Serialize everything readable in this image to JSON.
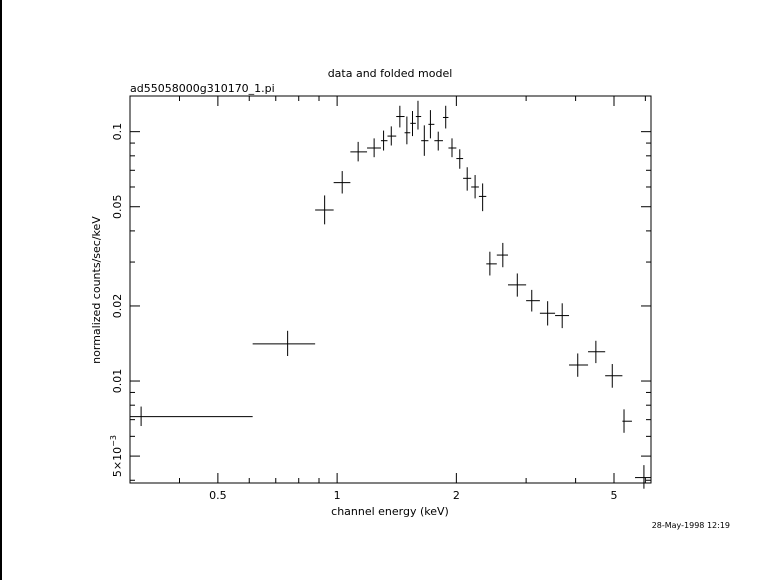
{
  "chart_data": {
    "type": "scatter",
    "title": "data and folded model",
    "subtitle": "ad55058000g310170_1.pi",
    "xlabel": "channel energy (keV)",
    "ylabel": "normalized counts/sec/keV",
    "x_scale": "log",
    "y_scale": "log",
    "xlim": [
      0.3,
      6.2
    ],
    "ylim": [
      0.0039,
      0.139
    ],
    "x_tick_labels": [
      "0.5",
      "1",
      "2",
      "5"
    ],
    "y_tick_labels": [
      "5×10",
      "0.01",
      "0.02",
      "0.05",
      "0.1"
    ],
    "y_tick_exponent": "−3",
    "grid": false,
    "legend": "none",
    "points": [
      {
        "x": 0.32,
        "y": 0.0072,
        "xlo": 0.3,
        "xhi": 0.612,
        "ylo": 0.0066,
        "yhi": 0.0079
      },
      {
        "x": 0.75,
        "y": 0.0141,
        "xlo": 0.612,
        "xhi": 0.88,
        "ylo": 0.0126,
        "yhi": 0.0159
      },
      {
        "x": 0.93,
        "y": 0.0485,
        "xlo": 0.88,
        "xhi": 0.98,
        "ylo": 0.0425,
        "yhi": 0.0555
      },
      {
        "x": 1.03,
        "y": 0.0625,
        "xlo": 0.98,
        "xhi": 1.08,
        "ylo": 0.0565,
        "yhi": 0.0695
      },
      {
        "x": 1.13,
        "y": 0.083,
        "xlo": 1.08,
        "xhi": 1.19,
        "ylo": 0.076,
        "yhi": 0.091
      },
      {
        "x": 1.24,
        "y": 0.086,
        "xlo": 1.19,
        "xhi": 1.29,
        "ylo": 0.079,
        "yhi": 0.094
      },
      {
        "x": 1.31,
        "y": 0.092,
        "xlo": 1.29,
        "xhi": 1.34,
        "ylo": 0.084,
        "yhi": 0.101
      },
      {
        "x": 1.37,
        "y": 0.096,
        "xlo": 1.34,
        "xhi": 1.41,
        "ylo": 0.088,
        "yhi": 0.105
      },
      {
        "x": 1.44,
        "y": 0.115,
        "xlo": 1.41,
        "xhi": 1.48,
        "ylo": 0.104,
        "yhi": 0.127
      },
      {
        "x": 1.5,
        "y": 0.099,
        "xlo": 1.48,
        "xhi": 1.53,
        "ylo": 0.089,
        "yhi": 0.115
      },
      {
        "x": 1.55,
        "y": 0.108,
        "xlo": 1.53,
        "xhi": 1.58,
        "ylo": 0.096,
        "yhi": 0.121
      },
      {
        "x": 1.6,
        "y": 0.115,
        "xlo": 1.58,
        "xhi": 1.63,
        "ylo": 0.102,
        "yhi": 0.133
      },
      {
        "x": 1.66,
        "y": 0.092,
        "xlo": 1.63,
        "xhi": 1.7,
        "ylo": 0.08,
        "yhi": 0.106
      },
      {
        "x": 1.72,
        "y": 0.107,
        "xlo": 1.7,
        "xhi": 1.76,
        "ylo": 0.094,
        "yhi": 0.122
      },
      {
        "x": 1.8,
        "y": 0.092,
        "xlo": 1.76,
        "xhi": 1.85,
        "ylo": 0.084,
        "yhi": 0.1
      },
      {
        "x": 1.88,
        "y": 0.114,
        "xlo": 1.85,
        "xhi": 1.91,
        "ylo": 0.103,
        "yhi": 0.127
      },
      {
        "x": 1.95,
        "y": 0.086,
        "xlo": 1.91,
        "xhi": 2.0,
        "ylo": 0.079,
        "yhi": 0.094
      },
      {
        "x": 2.04,
        "y": 0.078,
        "xlo": 2.0,
        "xhi": 2.08,
        "ylo": 0.071,
        "yhi": 0.085
      },
      {
        "x": 2.13,
        "y": 0.065,
        "xlo": 2.08,
        "xhi": 2.18,
        "ylo": 0.058,
        "yhi": 0.072
      },
      {
        "x": 2.23,
        "y": 0.06,
        "xlo": 2.18,
        "xhi": 2.28,
        "ylo": 0.054,
        "yhi": 0.067
      },
      {
        "x": 2.33,
        "y": 0.055,
        "xlo": 2.28,
        "xhi": 2.38,
        "ylo": 0.048,
        "yhi": 0.062
      },
      {
        "x": 2.43,
        "y": 0.0295,
        "xlo": 2.38,
        "xhi": 2.53,
        "ylo": 0.0265,
        "yhi": 0.033
      },
      {
        "x": 2.62,
        "y": 0.032,
        "xlo": 2.53,
        "xhi": 2.7,
        "ylo": 0.0286,
        "yhi": 0.0358
      },
      {
        "x": 2.85,
        "y": 0.0243,
        "xlo": 2.7,
        "xhi": 3.0,
        "ylo": 0.0218,
        "yhi": 0.027
      },
      {
        "x": 3.1,
        "y": 0.021,
        "xlo": 3.0,
        "xhi": 3.25,
        "ylo": 0.019,
        "yhi": 0.0232
      },
      {
        "x": 3.4,
        "y": 0.0187,
        "xlo": 3.25,
        "xhi": 3.55,
        "ylo": 0.0167,
        "yhi": 0.0209
      },
      {
        "x": 3.7,
        "y": 0.0183,
        "xlo": 3.55,
        "xhi": 3.85,
        "ylo": 0.0163,
        "yhi": 0.0205
      },
      {
        "x": 4.05,
        "y": 0.0116,
        "xlo": 3.85,
        "xhi": 4.3,
        "ylo": 0.0104,
        "yhi": 0.0129
      },
      {
        "x": 4.5,
        "y": 0.0131,
        "xlo": 4.3,
        "xhi": 4.75,
        "ylo": 0.0118,
        "yhi": 0.0145
      },
      {
        "x": 4.95,
        "y": 0.0105,
        "xlo": 4.75,
        "xhi": 5.25,
        "ylo": 0.0094,
        "yhi": 0.0117
      },
      {
        "x": 5.3,
        "y": 0.0069,
        "xlo": 5.25,
        "xhi": 5.55,
        "ylo": 0.0062,
        "yhi": 0.0077
      },
      {
        "x": 5.95,
        "y": 0.0041,
        "xlo": 5.65,
        "xhi": 6.2,
        "ylo": 0.0037,
        "yhi": 0.0046
      }
    ],
    "footer": "28-May-1998 12:19"
  }
}
